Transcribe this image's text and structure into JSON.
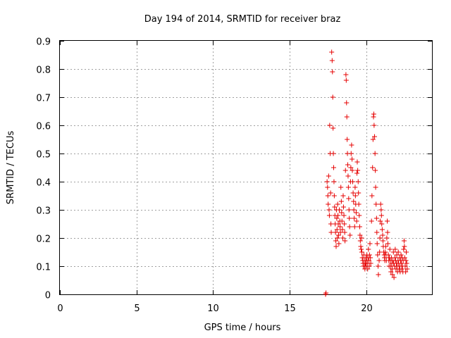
{
  "chart_data": {
    "type": "scatter",
    "title": "Day 194 of 2014, SRMTID for receiver braz",
    "xlabel": "GPS time / hours",
    "ylabel": "SRMTID / TECUs",
    "xlim": [
      0,
      24.3
    ],
    "ylim": [
      0,
      0.9
    ],
    "xticks": [
      0,
      5,
      10,
      15,
      20
    ],
    "xtick_labels": [
      "0",
      "5",
      "10",
      "15",
      "20"
    ],
    "yticks": [
      0,
      0.1,
      0.2,
      0.3,
      0.4,
      0.5,
      0.6,
      0.7,
      0.8,
      0.9
    ],
    "ytick_labels": [
      "0",
      "0.1",
      "0.2",
      "0.3",
      "0.4",
      "0.5",
      "0.6",
      "0.7",
      "0.8",
      "0.9"
    ],
    "grid": true,
    "marker": "+",
    "color": "#e60000",
    "series": [
      {
        "name": "SRMTID",
        "points": [
          [
            17.35,
            0.0
          ],
          [
            17.38,
            0.005
          ],
          [
            17.45,
            0.4
          ],
          [
            17.48,
            0.38
          ],
          [
            17.5,
            0.35
          ],
          [
            17.52,
            0.32
          ],
          [
            17.55,
            0.42
          ],
          [
            17.58,
            0.3
          ],
          [
            17.6,
            0.28
          ],
          [
            17.62,
            0.6
          ],
          [
            17.65,
            0.5
          ],
          [
            17.68,
            0.36
          ],
          [
            17.7,
            0.25
          ],
          [
            17.72,
            0.22
          ],
          [
            17.75,
            0.86
          ],
          [
            17.78,
            0.83
          ],
          [
            17.8,
            0.79
          ],
          [
            17.82,
            0.7
          ],
          [
            17.84,
            0.59
          ],
          [
            17.86,
            0.5
          ],
          [
            17.88,
            0.45
          ],
          [
            17.9,
            0.4
          ],
          [
            17.92,
            0.35
          ],
          [
            17.94,
            0.31
          ],
          [
            17.96,
            0.28
          ],
          [
            17.98,
            0.25
          ],
          [
            18.0,
            0.22
          ],
          [
            18.02,
            0.19
          ],
          [
            18.04,
            0.17
          ],
          [
            18.06,
            0.3
          ],
          [
            18.08,
            0.27
          ],
          [
            18.1,
            0.23
          ],
          [
            18.12,
            0.2
          ],
          [
            18.14,
            0.32
          ],
          [
            18.16,
            0.28
          ],
          [
            18.18,
            0.25
          ],
          [
            18.2,
            0.21
          ],
          [
            18.22,
            0.18
          ],
          [
            18.25,
            0.3
          ],
          [
            18.28,
            0.26
          ],
          [
            18.3,
            0.24
          ],
          [
            18.32,
            0.22
          ],
          [
            18.35,
            0.38
          ],
          [
            18.38,
            0.33
          ],
          [
            18.4,
            0.29
          ],
          [
            18.42,
            0.26
          ],
          [
            18.45,
            0.23
          ],
          [
            18.48,
            0.2
          ],
          [
            18.5,
            0.35
          ],
          [
            18.52,
            0.31
          ],
          [
            18.55,
            0.28
          ],
          [
            18.58,
            0.25
          ],
          [
            18.6,
            0.22
          ],
          [
            18.62,
            0.19
          ],
          [
            18.65,
            0.44
          ],
          [
            18.68,
            0.78
          ],
          [
            18.7,
            0.76
          ],
          [
            18.72,
            0.68
          ],
          [
            18.74,
            0.63
          ],
          [
            18.76,
            0.55
          ],
          [
            18.78,
            0.5
          ],
          [
            18.8,
            0.46
          ],
          [
            18.82,
            0.42
          ],
          [
            18.84,
            0.38
          ],
          [
            18.86,
            0.34
          ],
          [
            18.88,
            0.3
          ],
          [
            18.9,
            0.27
          ],
          [
            18.92,
            0.24
          ],
          [
            18.95,
            0.21
          ],
          [
            18.98,
            0.4
          ],
          [
            19.0,
            0.45
          ],
          [
            19.02,
            0.5
          ],
          [
            19.05,
            0.53
          ],
          [
            19.08,
            0.48
          ],
          [
            19.1,
            0.44
          ],
          [
            19.12,
            0.4
          ],
          [
            19.15,
            0.36
          ],
          [
            19.18,
            0.33
          ],
          [
            19.2,
            0.3
          ],
          [
            19.22,
            0.27
          ],
          [
            19.25,
            0.24
          ],
          [
            19.28,
            0.38
          ],
          [
            19.3,
            0.35
          ],
          [
            19.32,
            0.32
          ],
          [
            19.35,
            0.29
          ],
          [
            19.38,
            0.26
          ],
          [
            19.4,
            0.43
          ],
          [
            19.42,
            0.47
          ],
          [
            19.45,
            0.44
          ],
          [
            19.48,
            0.4
          ],
          [
            19.5,
            0.36
          ],
          [
            19.52,
            0.32
          ],
          [
            19.55,
            0.28
          ],
          [
            19.58,
            0.24
          ],
          [
            19.6,
            0.21
          ],
          [
            19.62,
            0.19
          ],
          [
            19.65,
            0.17
          ],
          [
            19.68,
            0.16
          ],
          [
            19.7,
            0.2
          ],
          [
            19.72,
            0.15
          ],
          [
            19.75,
            0.13
          ],
          [
            19.78,
            0.12
          ],
          [
            19.8,
            0.11
          ],
          [
            19.82,
            0.1
          ],
          [
            19.85,
            0.14
          ],
          [
            19.88,
            0.12
          ],
          [
            19.9,
            0.1
          ],
          [
            19.92,
            0.09
          ],
          [
            19.95,
            0.11
          ],
          [
            19.98,
            0.13
          ],
          [
            20.0,
            0.1
          ],
          [
            20.02,
            0.12
          ],
          [
            20.05,
            0.14
          ],
          [
            20.08,
            0.11
          ],
          [
            20.1,
            0.09
          ],
          [
            20.12,
            0.13
          ],
          [
            20.15,
            0.16
          ],
          [
            20.18,
            0.12
          ],
          [
            20.2,
            0.1
          ],
          [
            20.22,
            0.14
          ],
          [
            20.25,
            0.18
          ],
          [
            20.28,
            0.13
          ],
          [
            20.3,
            0.11
          ],
          [
            20.35,
            0.26
          ],
          [
            20.38,
            0.35
          ],
          [
            20.42,
            0.45
          ],
          [
            20.45,
            0.55
          ],
          [
            20.48,
            0.63
          ],
          [
            20.5,
            0.64
          ],
          [
            20.52,
            0.6
          ],
          [
            20.55,
            0.56
          ],
          [
            20.58,
            0.5
          ],
          [
            20.6,
            0.44
          ],
          [
            20.62,
            0.38
          ],
          [
            20.65,
            0.32
          ],
          [
            20.68,
            0.27
          ],
          [
            20.7,
            0.22
          ],
          [
            20.72,
            0.18
          ],
          [
            20.75,
            0.14
          ],
          [
            20.78,
            0.1
          ],
          [
            20.8,
            0.07
          ],
          [
            20.85,
            0.12
          ],
          [
            20.88,
            0.15
          ],
          [
            20.9,
            0.2
          ],
          [
            20.92,
            0.26
          ],
          [
            20.95,
            0.32
          ],
          [
            20.98,
            0.3
          ],
          [
            21.0,
            0.28
          ],
          [
            21.02,
            0.25
          ],
          [
            21.05,
            0.23
          ],
          [
            21.08,
            0.21
          ],
          [
            21.1,
            0.19
          ],
          [
            21.12,
            0.17
          ],
          [
            21.15,
            0.15
          ],
          [
            21.18,
            0.14
          ],
          [
            21.2,
            0.13
          ],
          [
            21.22,
            0.12
          ],
          [
            21.25,
            0.15
          ],
          [
            21.28,
            0.17
          ],
          [
            21.3,
            0.14
          ],
          [
            21.32,
            0.12
          ],
          [
            21.35,
            0.2
          ],
          [
            21.38,
            0.26
          ],
          [
            21.4,
            0.22
          ],
          [
            21.42,
            0.18
          ],
          [
            21.45,
            0.14
          ],
          [
            21.48,
            0.12
          ],
          [
            21.5,
            0.1
          ],
          [
            21.52,
            0.13
          ],
          [
            21.55,
            0.16
          ],
          [
            21.58,
            0.12
          ],
          [
            21.6,
            0.1
          ],
          [
            21.62,
            0.08
          ],
          [
            21.65,
            0.13
          ],
          [
            21.68,
            0.11
          ],
          [
            21.7,
            0.09
          ],
          [
            21.72,
            0.07
          ],
          [
            21.75,
            0.12
          ],
          [
            21.78,
            0.15
          ],
          [
            21.8,
            0.11
          ],
          [
            21.82,
            0.06
          ],
          [
            21.85,
            0.1
          ],
          [
            21.88,
            0.13
          ],
          [
            21.9,
            0.16
          ],
          [
            21.92,
            0.12
          ],
          [
            21.95,
            0.09
          ],
          [
            21.98,
            0.11
          ],
          [
            22.0,
            0.14
          ],
          [
            22.02,
            0.1
          ],
          [
            22.05,
            0.08
          ],
          [
            22.08,
            0.12
          ],
          [
            22.1,
            0.15
          ],
          [
            22.12,
            0.11
          ],
          [
            22.15,
            0.09
          ],
          [
            22.18,
            0.13
          ],
          [
            22.2,
            0.1
          ],
          [
            22.22,
            0.08
          ],
          [
            22.25,
            0.12
          ],
          [
            22.28,
            0.14
          ],
          [
            22.3,
            0.11
          ],
          [
            22.32,
            0.09
          ],
          [
            22.35,
            0.13
          ],
          [
            22.38,
            0.1
          ],
          [
            22.4,
            0.08
          ],
          [
            22.42,
            0.12
          ],
          [
            22.45,
            0.16
          ],
          [
            22.48,
            0.19
          ],
          [
            22.5,
            0.17
          ],
          [
            22.52,
            0.13
          ],
          [
            22.55,
            0.1
          ],
          [
            22.58,
            0.08
          ],
          [
            22.6,
            0.12
          ],
          [
            22.62,
            0.15
          ],
          [
            22.65,
            0.11
          ],
          [
            22.68,
            0.09
          ]
        ]
      }
    ]
  }
}
